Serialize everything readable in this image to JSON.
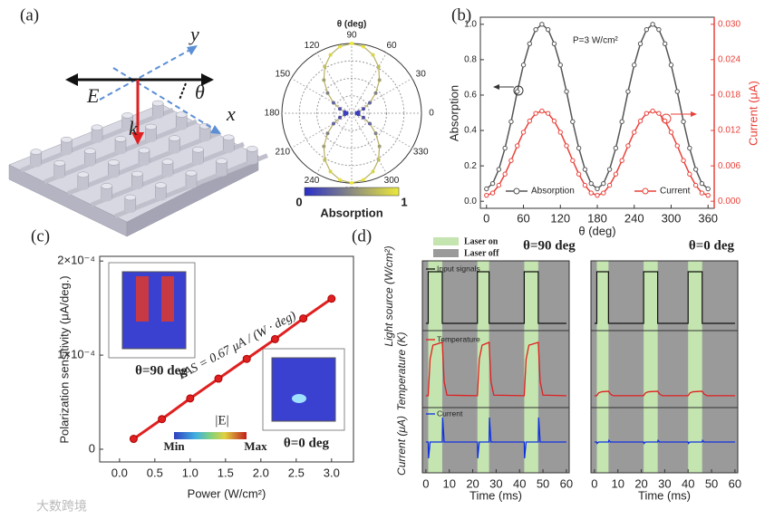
{
  "panel_labels": [
    "(a)",
    "(b)",
    "(c)",
    "(d)"
  ],
  "schematic": {
    "labels": [
      "y",
      "x",
      "E",
      "k",
      "θ"
    ]
  },
  "watermark": "大数跨境",
  "chart_data": [
    {
      "type": "polar",
      "title": "θ (deg)",
      "angle_ticks": [
        0,
        30,
        60,
        90,
        120,
        150,
        180,
        210,
        240,
        270,
        300,
        330
      ],
      "x": [
        0,
        10,
        20,
        30,
        40,
        50,
        60,
        70,
        80,
        90,
        100,
        110,
        120,
        130,
        140,
        150,
        160,
        170,
        180,
        190,
        200,
        210,
        220,
        230,
        240,
        250,
        260,
        270,
        280,
        290,
        300,
        310,
        320,
        330,
        340,
        350,
        360
      ],
      "values": [
        0.07,
        0.1,
        0.18,
        0.3,
        0.45,
        0.62,
        0.77,
        0.89,
        0.97,
        1.0,
        0.97,
        0.89,
        0.77,
        0.62,
        0.45,
        0.3,
        0.18,
        0.1,
        0.07,
        0.1,
        0.18,
        0.3,
        0.45,
        0.62,
        0.77,
        0.89,
        0.97,
        1.0,
        0.97,
        0.89,
        0.77,
        0.62,
        0.45,
        0.3,
        0.18,
        0.1,
        0.07
      ],
      "rlim": [
        0,
        1
      ],
      "colormap": [
        "#2a2ec8",
        "#ece83a"
      ],
      "colorbar": {
        "ticks": [
          0,
          1
        ],
        "label": "Absorption"
      }
    },
    {
      "type": "line",
      "xlabel": "θ (deg)",
      "ylabel": "Absorption",
      "y2label": "Current (μA)",
      "annotation": "P=3 W/cm²",
      "x": [
        0,
        10,
        20,
        30,
        40,
        50,
        60,
        70,
        80,
        90,
        100,
        110,
        120,
        130,
        140,
        150,
        160,
        170,
        180,
        190,
        200,
        210,
        220,
        230,
        240,
        250,
        260,
        270,
        280,
        290,
        300,
        310,
        320,
        330,
        340,
        350,
        360
      ],
      "xlim": [
        -10,
        370
      ],
      "xticks": [
        0,
        60,
        120,
        180,
        240,
        300,
        360
      ],
      "ylim": [
        -0.04,
        1.04
      ],
      "yticks": [
        {
          "value": 0,
          "label": "0.0"
        },
        0.2,
        0.4,
        0.6,
        0.8,
        {
          "value": 1,
          "label": "1.0"
        }
      ],
      "y2lim": [
        -0.0012,
        0.0312
      ],
      "y2ticks": [
        {
          "value": 0,
          "label": "0.000"
        },
        0.006,
        0.012,
        0.018,
        0.024,
        {
          "value": 0.03,
          "label": "0.030"
        }
      ],
      "series": [
        {
          "name": "Absorption",
          "color": "#555555",
          "values": [
            0.07,
            0.1,
            0.18,
            0.3,
            0.45,
            0.62,
            0.77,
            0.89,
            0.97,
            1.0,
            0.97,
            0.89,
            0.77,
            0.62,
            0.45,
            0.3,
            0.18,
            0.1,
            0.07,
            0.1,
            0.18,
            0.3,
            0.45,
            0.62,
            0.77,
            0.89,
            0.97,
            1.0,
            0.97,
            0.89,
            0.77,
            0.62,
            0.45,
            0.3,
            0.18,
            0.1,
            0.07
          ]
        },
        {
          "name": "Current",
          "color": "#e8423a",
          "axis": "y2",
          "values": [
            0.001,
            0.0014,
            0.0027,
            0.0046,
            0.0069,
            0.0094,
            0.0117,
            0.0136,
            0.0149,
            0.0153,
            0.0149,
            0.0136,
            0.0117,
            0.0094,
            0.0069,
            0.0046,
            0.0027,
            0.0014,
            0.001,
            0.0014,
            0.0027,
            0.0046,
            0.0069,
            0.0094,
            0.0117,
            0.0136,
            0.0149,
            0.0153,
            0.0149,
            0.0136,
            0.0117,
            0.0094,
            0.0069,
            0.0046,
            0.0027,
            0.0014,
            0.001
          ]
        }
      ]
    },
    {
      "type": "line",
      "xlabel": "Power (W/cm²)",
      "ylabel": "Polarization sensitivity (μA/deg.)",
      "annotations": [
        "PAS = 0.67 μA / (W · deg)",
        "θ=90 deg",
        "θ=0 deg",
        "|E|",
        "Min",
        "Max"
      ],
      "x": [
        0.2,
        0.6,
        1.0,
        1.4,
        1.8,
        2.2,
        2.6,
        3.0
      ],
      "values": [
        1.1e-05,
        3.2e-05,
        5.4e-05,
        7.5e-05,
        9.6e-05,
        0.000117,
        0.000139,
        0.00016
      ],
      "color": "#e02020",
      "xlim": [
        -0.28,
        3.31
      ],
      "xticks": [
        {
          "value": 0,
          "label": "0.0"
        },
        0.5,
        {
          "value": 1,
          "label": "1.0"
        },
        1.5,
        {
          "value": 2,
          "label": "2.0"
        },
        2.5,
        {
          "value": 3,
          "label": "3.0"
        }
      ],
      "ylim": [
        -1.35e-05,
        0.000205
      ],
      "yticks": [
        0,
        {
          "value": 0.0001,
          "label": "1×10⁻⁴"
        },
        {
          "value": 0.0002,
          "label": "2×10⁻⁴"
        }
      ]
    },
    {
      "type": "pulse",
      "legend": [
        "Laser on",
        "Laser off"
      ],
      "legend_colors": [
        "#c4e4b0",
        "#9a9a9a"
      ],
      "xlabel": "Time (ms)",
      "ylabels": [
        "Light source (W/cm²)",
        "Temperature (K)",
        "Current (μA)"
      ],
      "trace_names": [
        "Input signals",
        "Temperature",
        "Current"
      ],
      "trace_colors": [
        "#111111",
        "#e02020",
        "#1030e0"
      ],
      "xlim": [
        -1.5,
        61.2
      ],
      "xticks": [
        0,
        10,
        20,
        30,
        40,
        50,
        60
      ],
      "panels": [
        {
          "title": "θ=90 deg",
          "laser_on": [
            [
              1,
              7
            ],
            [
              22,
              27
            ],
            [
              42,
              48
            ]
          ],
          "temperature": {
            "x": [
              0,
              1,
              1.8,
              3,
              7,
              7.8,
              9,
              22,
              22.8,
              24,
              27,
              27.8,
              29,
              42,
              42.8,
              44,
              48,
              48.8,
              50,
              60
            ],
            "values": [
              0.05,
              0.05,
              0.7,
              0.95,
              1,
              0.3,
              0.06,
              0.05,
              0.7,
              0.95,
              1,
              0.3,
              0.06,
              0.05,
              0.7,
              0.95,
              1,
              0.3,
              0.06,
              0.05
            ]
          },
          "current": {
            "x": [
              0,
              1,
              1.15,
              1.8,
              7,
              7.15,
              7.8,
              22,
              22.15,
              22.8,
              27,
              27.15,
              27.8,
              42,
              42.15,
              42.8,
              48,
              48.15,
              48.8,
              60
            ],
            "values": [
              0,
              0,
              -0.6,
              0,
              0,
              0.9,
              0,
              0,
              -0.6,
              0,
              0,
              0.9,
              0,
              0,
              -0.6,
              0,
              0,
              0.9,
              0,
              0
            ]
          }
        },
        {
          "title": "θ=0 deg",
          "laser_on": [
            [
              1,
              6
            ],
            [
              21,
              27
            ],
            [
              40,
              46
            ]
          ],
          "temperature": {
            "x": [
              0,
              1,
              1.8,
              3,
              6,
              6.8,
              8,
              21,
              21.8,
              23,
              27,
              27.8,
              29,
              40,
              40.8,
              42,
              46,
              46.8,
              48,
              60
            ],
            "values": [
              0.05,
              0.05,
              0.1,
              0.12,
              0.13,
              0.08,
              0.05,
              0.05,
              0.1,
              0.12,
              0.13,
              0.08,
              0.05,
              0.05,
              0.1,
              0.12,
              0.13,
              0.08,
              0.05,
              0.05
            ]
          },
          "current": {
            "x": [
              0,
              1,
              1.15,
              1.8,
              6,
              6.15,
              6.8,
              21,
              21.15,
              21.8,
              27,
              27.15,
              27.8,
              40,
              40.15,
              40.8,
              46,
              46.15,
              46.8,
              60
            ],
            "values": [
              0,
              0,
              -0.05,
              0,
              0,
              0.06,
              0,
              0,
              -0.05,
              0,
              0,
              0.06,
              0,
              0,
              -0.05,
              0,
              0,
              0.06,
              0,
              0
            ]
          }
        }
      ]
    }
  ]
}
